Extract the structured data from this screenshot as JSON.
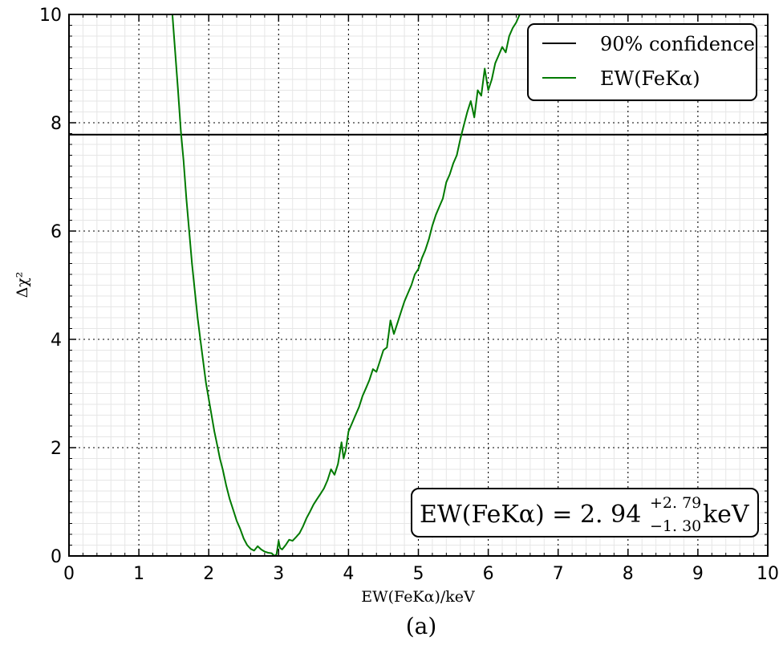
{
  "chart_data": {
    "type": "line",
    "title": "",
    "xlabel": "EW(FeKα)/keV",
    "ylabel": "Δχ²",
    "xlim": [
      0,
      10
    ],
    "ylim": [
      0,
      10
    ],
    "xticks": [
      "0",
      "1",
      "2",
      "3",
      "4",
      "5",
      "6",
      "7",
      "8",
      "9",
      "10"
    ],
    "yticks": [
      "0",
      "2",
      "4",
      "6",
      "8",
      "10"
    ],
    "grid": true,
    "legend_position": "top-right",
    "legend": [
      "90% confidence",
      "EW(FeKα)"
    ],
    "colors": {
      "confidence": "#000000",
      "ew": "#007a00"
    },
    "series": [
      {
        "name": "90% confidence",
        "type": "hline",
        "y": 7.78
      },
      {
        "name": "EW(FeKα)",
        "x": [
          1.48,
          1.52,
          1.56,
          1.6,
          1.64,
          1.68,
          1.72,
          1.76,
          1.8,
          1.84,
          1.88,
          1.92,
          1.96,
          2.0,
          2.04,
          2.08,
          2.12,
          2.16,
          2.2,
          2.25,
          2.3,
          2.35,
          2.4,
          2.45,
          2.5,
          2.55,
          2.6,
          2.65,
          2.7,
          2.75,
          2.8,
          2.85,
          2.9,
          2.94,
          2.97,
          3.0,
          3.02,
          3.05,
          3.1,
          3.15,
          3.2,
          3.25,
          3.3,
          3.35,
          3.4,
          3.45,
          3.5,
          3.55,
          3.6,
          3.65,
          3.7,
          3.75,
          3.8,
          3.85,
          3.9,
          3.93,
          3.96,
          4.0,
          4.05,
          4.1,
          4.15,
          4.2,
          4.25,
          4.3,
          4.35,
          4.4,
          4.45,
          4.5,
          4.55,
          4.6,
          4.65,
          4.7,
          4.75,
          4.8,
          4.85,
          4.9,
          4.95,
          5.0,
          5.05,
          5.1,
          5.15,
          5.2,
          5.25,
          5.3,
          5.35,
          5.4,
          5.45,
          5.5,
          5.55,
          5.6,
          5.65,
          5.7,
          5.75,
          5.8,
          5.85,
          5.9,
          5.95,
          6.0,
          6.05,
          6.1,
          6.15,
          6.2,
          6.25,
          6.3,
          6.35,
          6.4,
          6.45
        ],
        "values": [
          10.0,
          9.3,
          8.6,
          7.85,
          7.3,
          6.6,
          6.0,
          5.4,
          4.9,
          4.4,
          4.0,
          3.6,
          3.2,
          2.9,
          2.6,
          2.3,
          2.05,
          1.8,
          1.6,
          1.3,
          1.05,
          0.85,
          0.65,
          0.5,
          0.32,
          0.2,
          0.13,
          0.1,
          0.18,
          0.12,
          0.08,
          0.06,
          0.05,
          0.0,
          0.03,
          0.28,
          0.15,
          0.12,
          0.2,
          0.3,
          0.28,
          0.35,
          0.42,
          0.55,
          0.7,
          0.82,
          0.95,
          1.05,
          1.15,
          1.25,
          1.4,
          1.6,
          1.5,
          1.7,
          2.1,
          1.8,
          1.95,
          2.3,
          2.45,
          2.6,
          2.75,
          2.95,
          3.1,
          3.25,
          3.45,
          3.4,
          3.6,
          3.8,
          3.85,
          4.35,
          4.1,
          4.3,
          4.5,
          4.7,
          4.85,
          5.0,
          5.2,
          5.3,
          5.5,
          5.65,
          5.85,
          6.1,
          6.3,
          6.45,
          6.6,
          6.9,
          7.05,
          7.25,
          7.4,
          7.7,
          7.95,
          8.2,
          8.4,
          8.1,
          8.6,
          8.5,
          9.0,
          8.6,
          8.8,
          9.1,
          9.25,
          9.4,
          9.3,
          9.6,
          9.75,
          9.85,
          10.0
        ]
      }
    ],
    "annotation": {
      "prefix": "EW(FeKα) = 2. 94",
      "sup": "+2. 79",
      "sub": "−1. 30",
      "unit": "keV"
    },
    "caption": "(a)"
  }
}
